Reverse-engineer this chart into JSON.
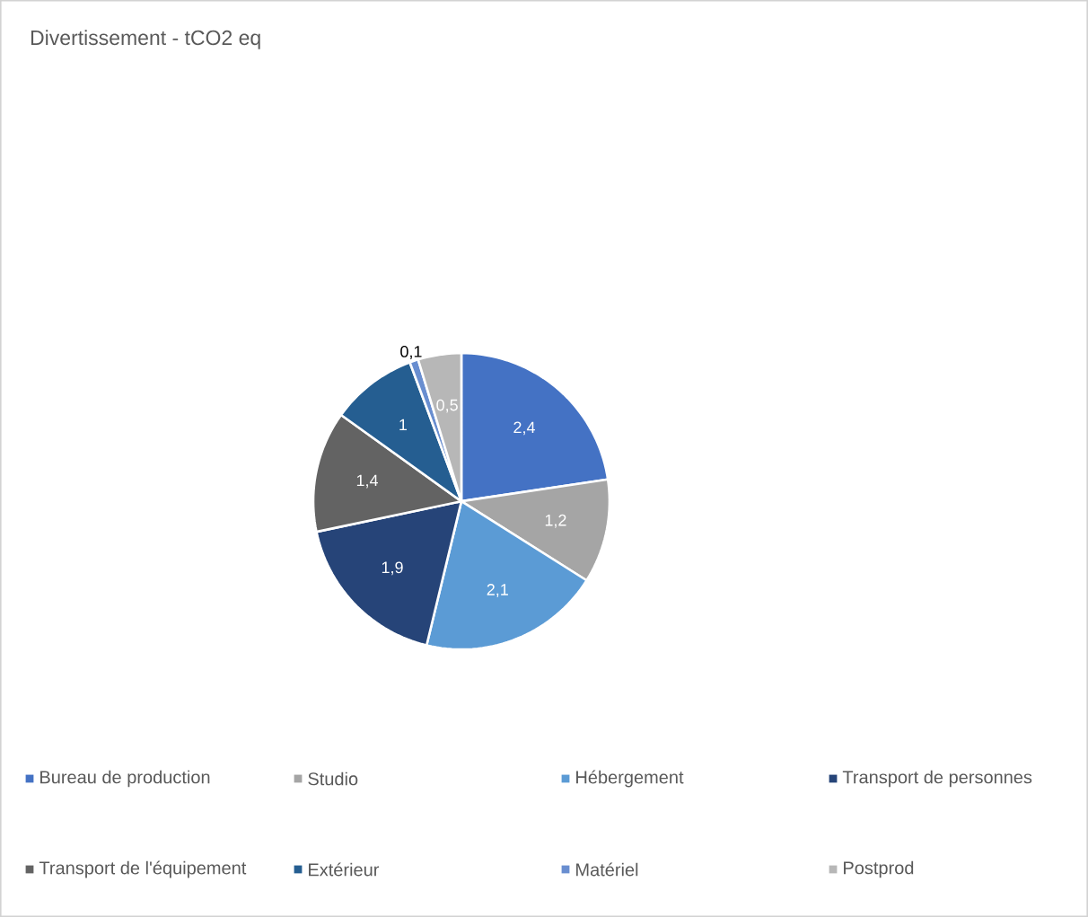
{
  "chart_data": {
    "type": "pie",
    "title": "Divertissement - tCO2 eq",
    "categories": [
      "Bureau de production",
      "Studio",
      "Hébergement",
      "Transport de personnes",
      "Transport de l'équipement",
      "Extérieur",
      "Matériel",
      "Postprod"
    ],
    "values": [
      2.4,
      1.2,
      2.1,
      1.9,
      1.4,
      1,
      0.1,
      0.5
    ],
    "value_labels": [
      "2,4",
      "1,2",
      "2,1",
      "1,9",
      "1,4",
      "1",
      "0,1",
      "0,5"
    ],
    "colors": [
      "#4472c4",
      "#a5a5a5",
      "#5b9bd5",
      "#264478",
      "#636363",
      "#255e91",
      "#698ed0",
      "#b7b7b7"
    ],
    "legend": "bottom"
  }
}
